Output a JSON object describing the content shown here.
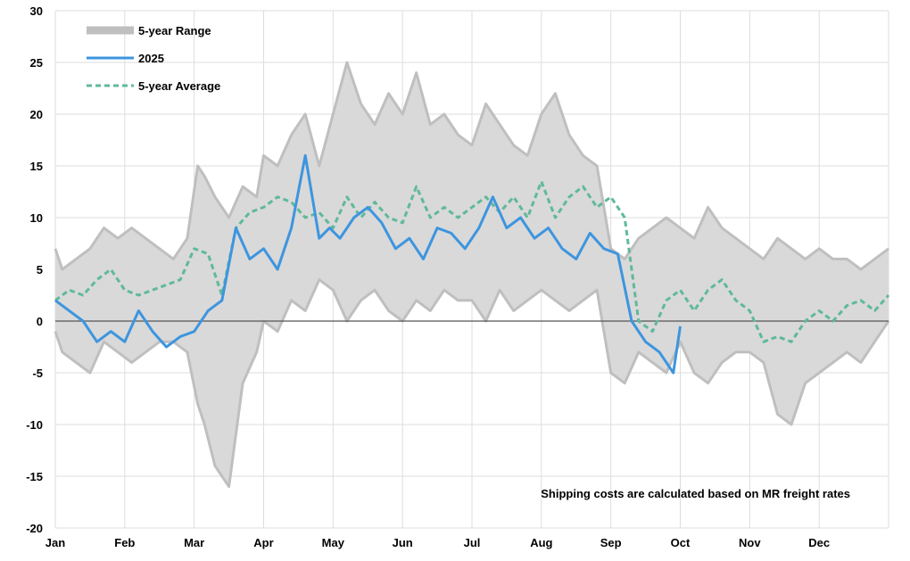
{
  "chart_data": {
    "type": "line",
    "title": "",
    "xlabel": "",
    "ylabel": "",
    "ylim": [
      -20,
      30
    ],
    "xlim": [
      0,
      12
    ],
    "grid": true,
    "legend_position": "top-left",
    "yticks": [
      -20,
      -15,
      -10,
      -5,
      0,
      5,
      10,
      15,
      20,
      25,
      30
    ],
    "ytick_labels": [
      "-20",
      "-15",
      "-10",
      "-5",
      "0",
      "5",
      "10",
      "15",
      "20",
      "25",
      "30"
    ],
    "x_categories": [
      "Jan",
      "Feb",
      "Mar",
      "Apr",
      "May",
      "Jun",
      "Jul",
      "Aug",
      "Sep",
      "Oct",
      "Nov",
      "Dec"
    ],
    "annotation": "Shipping costs are calculated based on MR freight rates",
    "colors": {
      "range_fill": "#d9d9d9",
      "range_edge": "#bfbfbf",
      "line_2025": "#3d95df",
      "avg": "#5fb99a",
      "zero": "#555555",
      "grid": "#dddddd",
      "text": "#000000"
    },
    "series": [
      {
        "name": "5-year Range",
        "kind": "band",
        "x": [
          0.0,
          0.1,
          0.3,
          0.5,
          0.7,
          0.9,
          1.1,
          1.3,
          1.5,
          1.7,
          1.9,
          2.05,
          2.15,
          2.3,
          2.5,
          2.7,
          2.9,
          3.0,
          3.2,
          3.4,
          3.6,
          3.8,
          4.0,
          4.2,
          4.4,
          4.6,
          4.8,
          5.0,
          5.2,
          5.4,
          5.6,
          5.8,
          6.0,
          6.2,
          6.4,
          6.6,
          6.8,
          7.0,
          7.2,
          7.4,
          7.6,
          7.8,
          8.0,
          8.2,
          8.4,
          8.6,
          8.8,
          9.0,
          9.2,
          9.4,
          9.6,
          9.8,
          10.0,
          10.2,
          10.4,
          10.6,
          10.8,
          11.0,
          11.2,
          11.4,
          11.6,
          11.8,
          12.0
        ],
        "upper": [
          7.0,
          5.0,
          6.0,
          7.0,
          9.0,
          8.0,
          9.0,
          8.0,
          7.0,
          6.0,
          8.0,
          15.0,
          14.0,
          12.0,
          10.0,
          13.0,
          12.0,
          16.0,
          15.0,
          18.0,
          20.0,
          15.0,
          20.0,
          25.0,
          21.0,
          19.0,
          22.0,
          20.0,
          24.0,
          19.0,
          20.0,
          18.0,
          17.0,
          21.0,
          19.0,
          17.0,
          16.0,
          20.0,
          22.0,
          18.0,
          16.0,
          15.0,
          7.0,
          6.0,
          8.0,
          9.0,
          10.0,
          9.0,
          8.0,
          11.0,
          9.0,
          8.0,
          7.0,
          6.0,
          8.0,
          7.0,
          6.0,
          7.0,
          6.0,
          6.0,
          5.0,
          6.0,
          7.0
        ],
        "lower": [
          -1.0,
          -3.0,
          -4.0,
          -5.0,
          -2.0,
          -3.0,
          -4.0,
          -3.0,
          -2.0,
          -2.0,
          -3.0,
          -8.0,
          -10.0,
          -14.0,
          -16.0,
          -6.0,
          -3.0,
          0.0,
          -1.0,
          2.0,
          1.0,
          4.0,
          3.0,
          0.0,
          2.0,
          3.0,
          1.0,
          0.0,
          2.0,
          1.0,
          3.0,
          2.0,
          2.0,
          0.0,
          3.0,
          1.0,
          2.0,
          3.0,
          2.0,
          1.0,
          2.0,
          3.0,
          -5.0,
          -6.0,
          -3.0,
          -4.0,
          -5.0,
          -2.0,
          -5.0,
          -6.0,
          -4.0,
          -3.0,
          -3.0,
          -4.0,
          -9.0,
          -10.0,
          -6.0,
          -5.0,
          -4.0,
          -3.0,
          -4.0,
          -2.0,
          0.0
        ]
      },
      {
        "name": "2025",
        "kind": "line",
        "x": [
          0.0,
          0.2,
          0.4,
          0.6,
          0.8,
          1.0,
          1.2,
          1.4,
          1.6,
          1.8,
          2.0,
          2.2,
          2.4,
          2.6,
          2.8,
          3.0,
          3.2,
          3.4,
          3.6,
          3.8,
          3.95,
          4.1,
          4.3,
          4.5,
          4.7,
          4.9,
          5.1,
          5.3,
          5.5,
          5.7,
          5.9,
          6.1,
          6.3,
          6.5,
          6.7,
          6.9,
          7.1,
          7.3,
          7.5,
          7.7,
          7.9,
          8.1,
          8.3,
          8.5,
          8.7,
          8.9,
          9.0
        ],
        "values": [
          2.0,
          1.0,
          0.0,
          -2.0,
          -1.0,
          -2.0,
          1.0,
          -1.0,
          -2.5,
          -1.5,
          -1.0,
          1.0,
          2.0,
          9.0,
          6.0,
          7.0,
          5.0,
          9.0,
          16.0,
          8.0,
          9.0,
          8.0,
          10.0,
          11.0,
          9.5,
          7.0,
          8.0,
          6.0,
          9.0,
          8.5,
          7.0,
          9.0,
          12.0,
          9.0,
          10.0,
          8.0,
          9.0,
          7.0,
          6.0,
          8.5,
          7.0,
          6.5,
          0.0,
          -2.0,
          -3.0,
          -5.0,
          -0.5
        ]
      },
      {
        "name": "5-year Average",
        "kind": "dashed",
        "x": [
          0.0,
          0.2,
          0.4,
          0.6,
          0.8,
          1.0,
          1.2,
          1.4,
          1.6,
          1.8,
          2.0,
          2.2,
          2.4,
          2.6,
          2.8,
          3.0,
          3.2,
          3.4,
          3.6,
          3.8,
          4.0,
          4.2,
          4.4,
          4.6,
          4.8,
          5.0,
          5.2,
          5.4,
          5.6,
          5.8,
          6.0,
          6.2,
          6.4,
          6.6,
          6.8,
          7.0,
          7.2,
          7.4,
          7.6,
          7.8,
          8.0,
          8.2,
          8.4,
          8.6,
          8.8,
          9.0,
          9.2,
          9.4,
          9.6,
          9.8,
          10.0,
          10.2,
          10.4,
          10.6,
          10.8,
          11.0,
          11.2,
          11.4,
          11.6,
          11.8,
          12.0
        ],
        "values": [
          2.0,
          3.0,
          2.5,
          4.0,
          5.0,
          3.0,
          2.5,
          3.0,
          3.5,
          4.0,
          7.0,
          6.5,
          2.5,
          9.0,
          10.5,
          11.0,
          12.0,
          11.5,
          10.0,
          10.5,
          9.0,
          12.0,
          10.0,
          11.5,
          10.0,
          9.5,
          13.0,
          10.0,
          11.0,
          10.0,
          11.0,
          12.0,
          10.5,
          12.0,
          10.0,
          13.5,
          10.0,
          12.0,
          13.0,
          11.0,
          12.0,
          10.0,
          0.0,
          -1.0,
          2.0,
          3.0,
          1.0,
          3.0,
          4.0,
          2.0,
          1.0,
          -2.0,
          -1.5,
          -2.0,
          0.0,
          1.0,
          0.0,
          1.5,
          2.0,
          1.0,
          2.5
        ]
      }
    ]
  }
}
